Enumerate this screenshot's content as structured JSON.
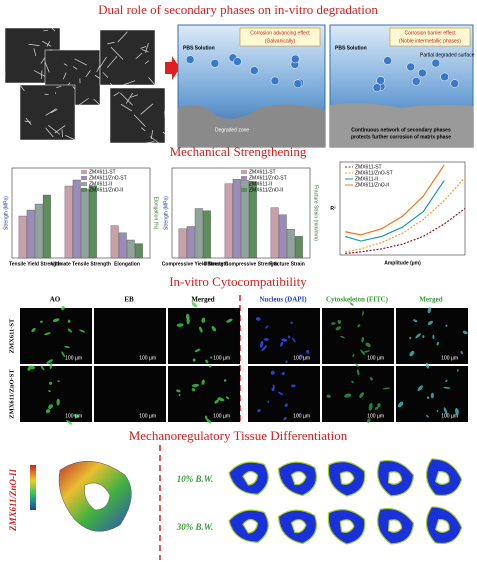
{
  "degradation": {
    "title": "Dual role of secondary phases on in-vitro degradation",
    "galvanic_panel": {
      "title": "Corrosion advancing effect",
      "subtitle": "(Galvanically)",
      "solution": "PBS Solution",
      "zone": "Degraded zone"
    },
    "barrier_panel": {
      "title": "Corrosion barrier effect",
      "subtitle": "(Noble intermetallic phases)",
      "solution": "PBS Solution",
      "surface": "Partial degraded surface",
      "caption": [
        "Continuous network of secondary phases",
        "protects further corrosion of matrix phase"
      ]
    }
  },
  "mechanical": {
    "title": "Mechanical Strengthening",
    "series": [
      {
        "name": "ZMX611-ST",
        "color": "#c9a0a8"
      },
      {
        "name": "ZMX611/ZnO-ST",
        "color": "#9b8bb8"
      },
      {
        "name": "ZMX611-II",
        "color": "#8fa59c"
      },
      {
        "name": "ZMX611/ZnO-II",
        "color": "#5d8d5a"
      }
    ],
    "bar_charts": [
      {
        "ylabel": "Strength (MPa)",
        "y2label": "Elongation (%)",
        "categories": [
          "Tensile Yield Strength",
          "Ultimate Tensile Strength",
          "Elongation"
        ],
        "y2_categories": [
          "Elongation"
        ],
        "ylim": [
          0,
          150
        ],
        "y2lim": [
          0,
          25
        ],
        "values": [
          [
            70,
            120,
            9
          ],
          [
            80,
            130,
            7
          ],
          [
            90,
            115,
            5
          ],
          [
            105,
            120,
            4
          ]
        ]
      },
      {
        "ylabel": "Strength (MPa)",
        "y2label": "Fracture Strain (mm/mm)",
        "categories": [
          "Compressive Yield Strength",
          "Ultimate Compressive Strength",
          "Fracture Strain"
        ],
        "y2_categories": [
          "Fracture Strain"
        ],
        "ylim": [
          0,
          400
        ],
        "y2lim": [
          0,
          0.25
        ],
        "values": [
          [
            130,
            330,
            0.14
          ],
          [
            140,
            350,
            0.12
          ],
          [
            220,
            345,
            0.08
          ],
          [
            210,
            340,
            0.06
          ]
        ]
      }
    ],
    "line_chart": {
      "xlabel": "Amplitude (µm)",
      "ylabel": "R²",
      "xlim": [
        0,
        12
      ],
      "ylim": [
        0.94,
        1.0
      ],
      "x": [
        0.5,
        2,
        4,
        6,
        8,
        10,
        12
      ],
      "series": [
        {
          "name": "ZMX611-ST",
          "color": "#8b1a2b",
          "dash": true,
          "values": [
            0.941,
            0.942,
            0.944,
            0.947,
            0.952,
            0.96,
            0.97
          ]
        },
        {
          "name": "ZMX611/ZnO-ST",
          "color": "#f0a030",
          "dash": true,
          "values": [
            0.942,
            0.944,
            0.948,
            0.954,
            0.963,
            0.975,
            0.99
          ]
        },
        {
          "name": "ZMX611-II",
          "color": "#1a9aa0",
          "dash": false,
          "values": [
            0.952,
            0.949,
            0.952,
            0.958,
            0.968,
            0.988,
            null
          ]
        },
        {
          "name": "ZMX611/ZnO-II",
          "color": "#f07820",
          "dash": false,
          "values": [
            0.955,
            0.953,
            0.957,
            0.965,
            0.978,
            0.998,
            null
          ]
        }
      ]
    }
  },
  "cytocompatibility": {
    "title": "In-vitro Cytocompatibility",
    "left_headers": [
      "AO",
      "EB",
      "Merged"
    ],
    "right_headers": [
      "Nucleus (DAPI)",
      "Cytoskeleton (FITC)",
      "Merged"
    ],
    "rows": [
      "ZMX611-ST",
      "ZMX611/ZnO-ST"
    ],
    "scale": "100 µm"
  },
  "tissue": {
    "title": "Mechanoregulatory Tissue Differentiation",
    "sample": "ZMX611/ZnO-II",
    "loads": [
      "10% B.W.",
      "30% B.W."
    ]
  }
}
